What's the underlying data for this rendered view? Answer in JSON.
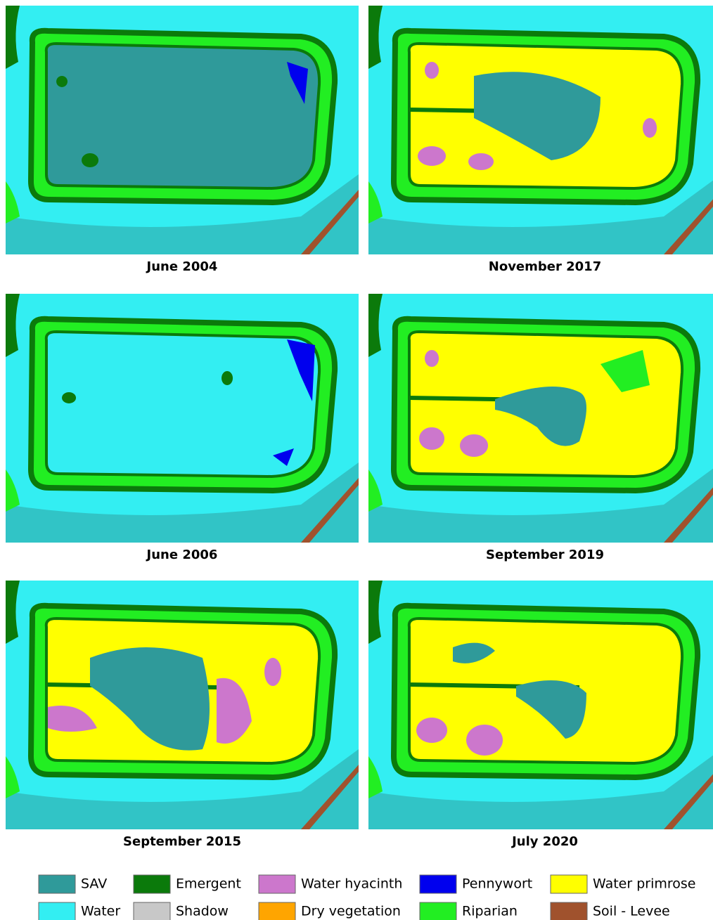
{
  "panels": [
    {
      "caption": "June 2004"
    },
    {
      "caption": "November 2017"
    },
    {
      "caption": "June 2006"
    },
    {
      "caption": "September 2019"
    },
    {
      "caption": "September 2015"
    },
    {
      "caption": "July 2020"
    }
  ],
  "legend": [
    {
      "label": "SAV",
      "color": "#2f9a9a"
    },
    {
      "label": "Emergent",
      "color": "#0b7a0b"
    },
    {
      "label": "Water hyacinth",
      "color": "#cc77cc"
    },
    {
      "label": "Pennywort",
      "color": "#0000ee"
    },
    {
      "label": "Water primrose",
      "color": "#ffff00"
    },
    {
      "label": "Water",
      "color": "#33eef2"
    },
    {
      "label": "Shadow",
      "color": "#c8c8c8"
    },
    {
      "label": "Dry vegetation",
      "color": "#ffa500"
    },
    {
      "label": "Riparian",
      "color": "#22ee22"
    },
    {
      "label": "Soil - Levee",
      "color": "#a0522d"
    }
  ]
}
